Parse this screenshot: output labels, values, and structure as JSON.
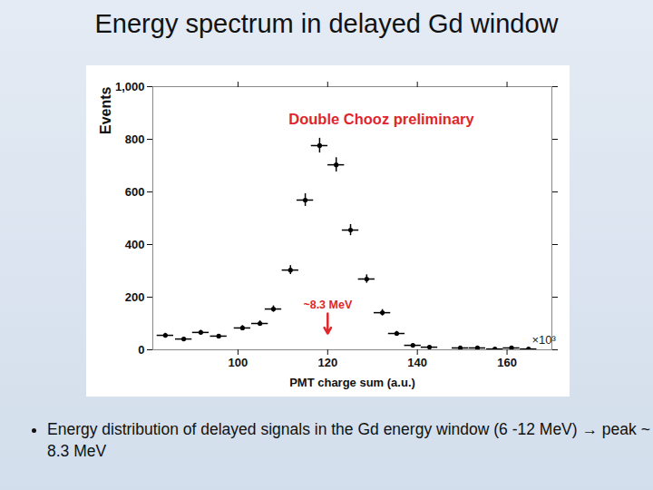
{
  "title": "Energy spectrum in delayed Gd window",
  "bullet": "Energy distribution of delayed signals in the Gd energy window (6 -12 MeV) → peak ~ 8.3 MeV",
  "chart_data": {
    "type": "scatter",
    "title": "Double Chooz preliminary",
    "x_label": "PMT charge sum (a.u.)",
    "y_label": "Events",
    "axis_multiplier": "×10³",
    "color": "#000000",
    "marker": "circle",
    "x": [
      83.8,
      87.9,
      91.7,
      95.7,
      101.0,
      104.9,
      107.9,
      111.7,
      115.0,
      118.2,
      121.9,
      125.1,
      128.7,
      132.2,
      135.4,
      139.0,
      142.7,
      149.6,
      153.4,
      157.3,
      161.0,
      164.8
    ],
    "values": [
      55,
      41,
      66,
      52,
      83,
      100,
      155,
      303,
      569,
      776,
      703,
      455,
      269,
      141,
      62,
      17,
      10,
      7,
      7,
      3,
      7,
      3
    ],
    "y_errors": [
      8,
      7,
      8,
      7,
      9,
      10,
      12,
      17,
      24,
      28,
      27,
      21,
      16,
      12,
      8,
      4,
      3,
      3,
      3,
      2,
      3,
      2
    ],
    "x_errors": [
      1.85,
      1.85,
      1.85,
      1.85,
      1.85,
      1.85,
      1.85,
      1.85,
      1.85,
      1.85,
      1.85,
      1.85,
      1.85,
      1.85,
      1.85,
      1.85,
      1.85,
      1.85,
      1.85,
      1.85,
      1.85,
      1.85
    ],
    "xlim": [
      81,
      170
    ],
    "ylim": [
      0,
      1000
    ],
    "xticks": [
      100,
      120,
      140,
      160
    ],
    "yticks": [
      0,
      200,
      400,
      600,
      800,
      1000
    ],
    "annotations": [
      {
        "text": "~8.3 MeV",
        "x": 120,
        "y": 150,
        "arrow_to": [
          120,
          62
        ]
      }
    ]
  }
}
